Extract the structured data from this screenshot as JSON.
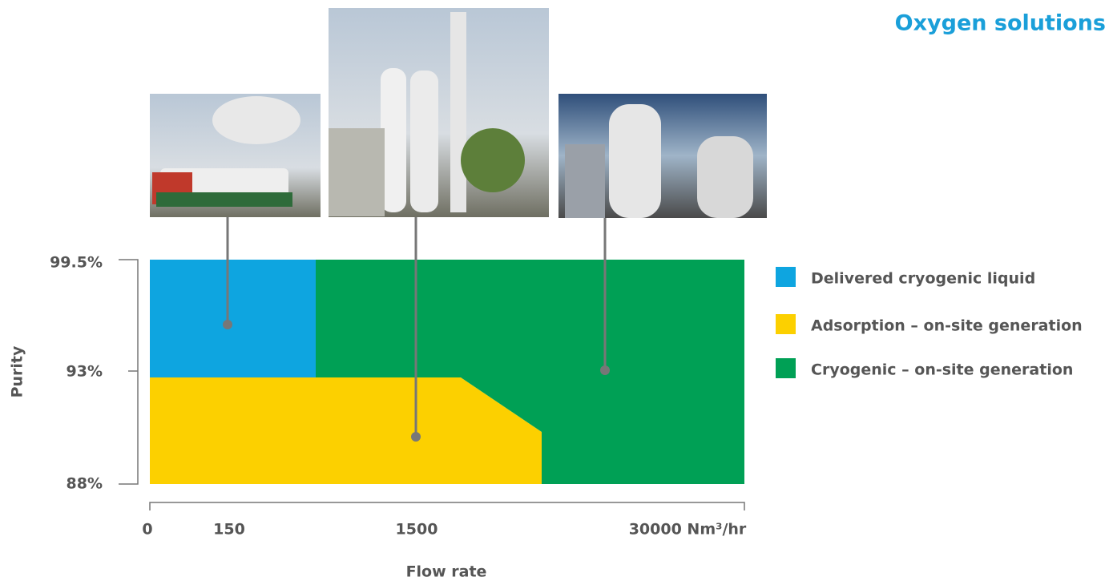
{
  "title": "Oxygen solutions",
  "y_axis": {
    "label": "Purity",
    "ticks": [
      "99.5%",
      "93%",
      "88%"
    ]
  },
  "x_axis": {
    "label": "Flow rate",
    "ticks": [
      "0",
      "150",
      "1500",
      "30000 Nm³/hr"
    ]
  },
  "legend": [
    {
      "label": "Delivered cryogenic liquid",
      "color": "#0ea5e0"
    },
    {
      "label": "Adsorption – on-site generation",
      "color": "#fcd000"
    },
    {
      "label": "Cryogenic – on-site generation",
      "color": "#00a055"
    }
  ]
}
